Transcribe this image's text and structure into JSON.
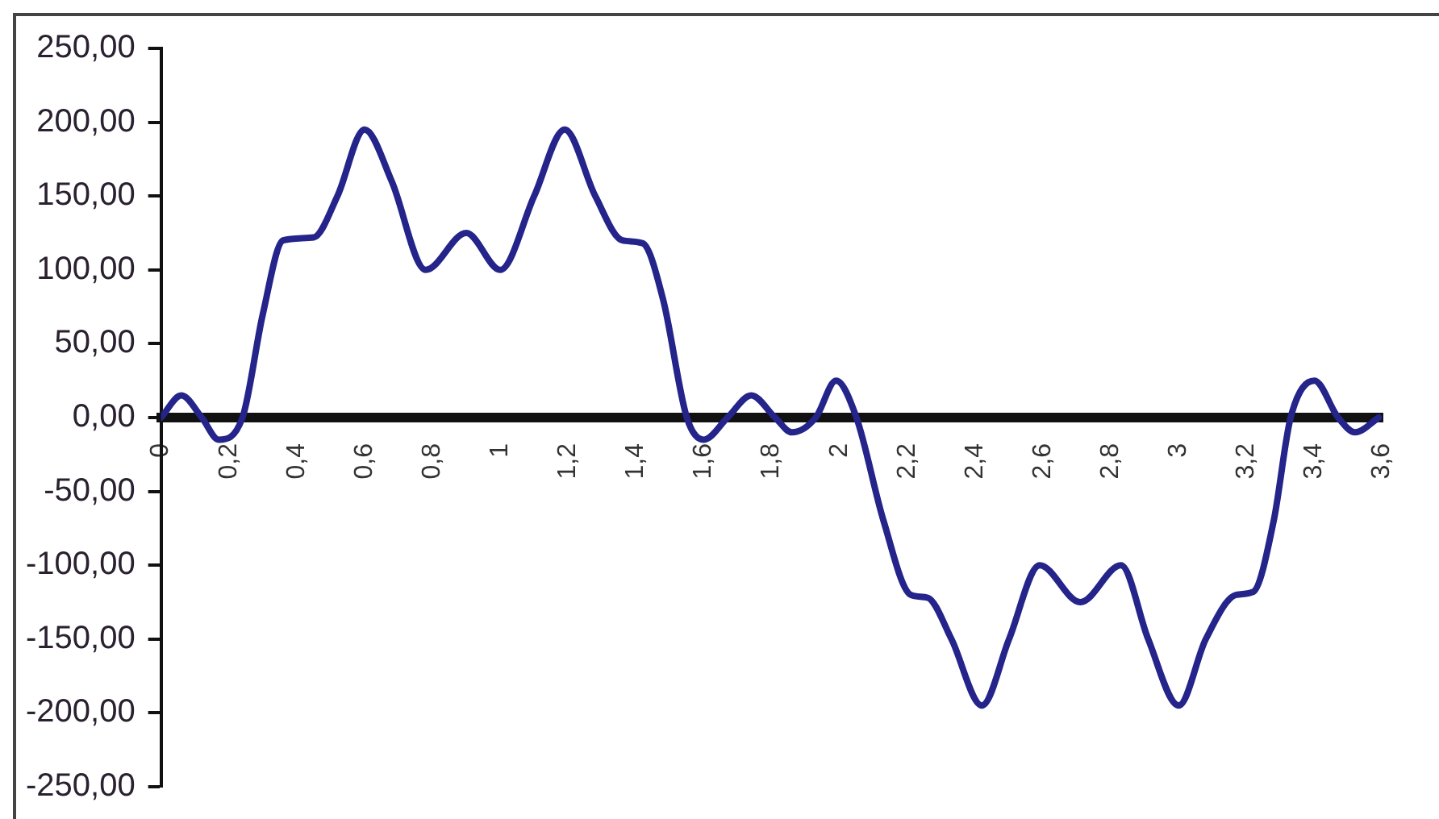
{
  "chart_data": {
    "type": "line",
    "x": [
      0,
      0.06,
      0.12,
      0.17,
      0.24,
      0.3,
      0.36,
      0.45,
      0.52,
      0.6,
      0.68,
      0.78,
      0.9,
      1.0,
      1.1,
      1.19,
      1.28,
      1.36,
      1.42,
      1.48,
      1.55,
      1.6,
      1.67,
      1.74,
      1.81,
      1.86,
      1.93,
      1.99,
      2.05,
      2.13,
      2.21,
      2.26,
      2.33,
      2.42,
      2.5,
      2.59,
      2.71,
      2.83,
      2.91,
      3.0,
      3.08,
      3.17,
      3.22,
      3.28,
      3.33,
      3.4,
      3.47,
      3.52,
      3.59
    ],
    "series": [
      {
        "color": "#24248a",
        "values": [
          0,
          15,
          0,
          -15,
          0,
          70,
          120,
          122,
          150,
          195,
          160,
          100,
          125,
          100,
          150,
          195,
          150,
          120,
          118,
          80,
          0,
          -15,
          0,
          15,
          0,
          -10,
          0,
          25,
          0,
          -70,
          -120,
          -122,
          -150,
          -195,
          -150,
          -100,
          -125,
          -100,
          -150,
          -195,
          -150,
          -120,
          -118,
          -70,
          0,
          25,
          0,
          -10,
          0
        ]
      }
    ],
    "xlim": [
      0,
      3.6
    ],
    "xticks": [
      0,
      {
        "value": 0.2,
        "label": "0,2"
      },
      {
        "value": 0.4,
        "label": "0,4"
      },
      {
        "value": 0.6,
        "label": "0,6"
      },
      {
        "value": 0.8,
        "label": "0,8"
      },
      1,
      {
        "value": 1.2,
        "label": "1,2"
      },
      {
        "value": 1.4,
        "label": "1,4"
      },
      {
        "value": 1.6,
        "label": "1,6"
      },
      {
        "value": 1.8,
        "label": "1,8"
      },
      2,
      {
        "value": 2.2,
        "label": "2,2"
      },
      {
        "value": 2.4,
        "label": "2,4"
      },
      {
        "value": 2.6,
        "label": "2,6"
      },
      {
        "value": 2.8,
        "label": "2,8"
      },
      3,
      {
        "value": 3.2,
        "label": "3,2"
      },
      {
        "value": 3.4,
        "label": "3,4"
      },
      {
        "value": 3.6,
        "label": "3,6"
      }
    ],
    "ylim": [
      -250,
      250
    ],
    "yticks": [
      {
        "value": -250,
        "label": "-250,00"
      },
      {
        "value": -200,
        "label": "-200,00"
      },
      {
        "value": -150,
        "label": "-150,00"
      },
      {
        "value": -100,
        "label": "-100,00"
      },
      {
        "value": -50,
        "label": "-50,00"
      },
      {
        "value": 0,
        "label": "0,00"
      },
      {
        "value": 50,
        "label": "50,00"
      },
      {
        "value": 100,
        "label": "100,00"
      },
      {
        "value": 150,
        "label": "150,00"
      },
      {
        "value": 200,
        "label": "200,00"
      },
      {
        "value": 250,
        "label": "250,00"
      }
    ],
    "grid": false,
    "legend": false,
    "marker": "none",
    "line_style": "solid"
  }
}
